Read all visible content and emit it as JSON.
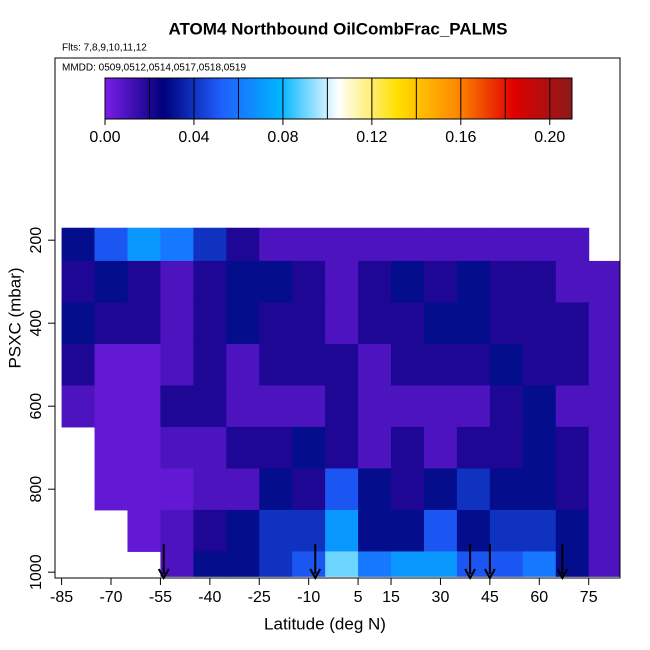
{
  "chart_data": {
    "type": "heatmap",
    "title": "ATOM4 Northbound OilCombFrac_PALMS",
    "flights": "Flts: 7,8,9,10,11,12",
    "dates": "MMDD: 0509,0512,0514,0517,0518,0519",
    "x_label": "Latitude (deg N)",
    "y_label": "PSXC (mbar)",
    "xlim": [
      -87,
      84.5
    ],
    "ylim": [
      1014,
      -239
    ],
    "xticks": [
      -85,
      -70,
      -55,
      -40,
      -25,
      -10,
      5,
      15,
      30,
      45,
      60,
      75
    ],
    "yticks": [
      200,
      400,
      600,
      800,
      1000
    ],
    "x_edges": [
      -85,
      -75,
      -65,
      -55,
      -45,
      -35,
      -25,
      -15,
      -5,
      5,
      15,
      25,
      35,
      45,
      55,
      65,
      75,
      85
    ],
    "y_edges": [
      170,
      250,
      350,
      450,
      550,
      650,
      750,
      850,
      950,
      1010
    ],
    "values": [
      [
        0.03,
        0.05,
        0.07,
        0.06,
        0.04,
        0.02,
        0.01,
        0.01,
        0.01,
        0.01,
        0.01,
        0.01,
        0.01,
        0.01,
        0.01,
        0.01,
        null
      ],
      [
        0.02,
        0.03,
        0.02,
        0.01,
        0.02,
        0.03,
        0.03,
        0.02,
        0.01,
        0.02,
        0.03,
        0.02,
        0.03,
        0.02,
        0.02,
        0.01,
        0.01
      ],
      [
        0.03,
        0.02,
        0.02,
        0.01,
        0.02,
        0.03,
        0.02,
        0.02,
        0.01,
        0.02,
        0.02,
        0.03,
        0.03,
        0.02,
        0.02,
        0.02,
        0.01
      ],
      [
        0.02,
        0.005,
        0.005,
        0.01,
        0.02,
        0.01,
        0.02,
        0.02,
        0.02,
        0.01,
        0.02,
        0.02,
        0.02,
        0.03,
        0.02,
        0.02,
        0.01
      ],
      [
        0.01,
        0.005,
        0.005,
        0.02,
        0.02,
        0.01,
        0.01,
        0.01,
        0.02,
        0.01,
        0.01,
        0.01,
        0.01,
        0.02,
        0.03,
        0.01,
        0.01
      ],
      [
        null,
        0.005,
        0.005,
        0.01,
        0.01,
        0.02,
        0.02,
        0.03,
        0.02,
        0.01,
        0.02,
        0.01,
        0.02,
        0.02,
        0.03,
        0.02,
        0.01
      ],
      [
        null,
        0.005,
        0.005,
        0.005,
        0.01,
        0.01,
        0.03,
        0.02,
        0.05,
        0.03,
        0.02,
        0.03,
        0.04,
        0.03,
        0.03,
        0.02,
        0.01
      ],
      [
        null,
        null,
        0.005,
        0.01,
        0.02,
        0.03,
        0.04,
        0.04,
        0.07,
        0.03,
        0.03,
        0.05,
        0.03,
        0.04,
        0.04,
        0.03,
        0.01
      ],
      [
        null,
        null,
        null,
        0.01,
        0.03,
        0.03,
        0.04,
        0.05,
        0.09,
        0.06,
        0.07,
        0.07,
        0.05,
        0.05,
        0.06,
        0.03,
        0.01
      ]
    ],
    "colorbar_lim": [
      0,
      0.21
    ],
    "colorbar_ticks": [
      {
        "value": 0,
        "label": "0.00"
      },
      {
        "value": 0.04,
        "label": "0.04"
      },
      {
        "value": 0.08,
        "label": "0.08"
      },
      {
        "value": 0.12,
        "label": "0.12"
      },
      {
        "value": 0.16,
        "label": "0.16"
      },
      {
        "value": 0.2,
        "label": "0.20"
      }
    ],
    "colormap": [
      "#7a1fe8",
      "#00007a",
      "#1f5fff",
      "#00b4ff",
      "#ffffff",
      "#ffe000",
      "#ff8c00",
      "#e00000",
      "#8b1a1a"
    ],
    "arrows_lat": [
      -54,
      -8,
      39,
      45,
      67
    ]
  }
}
